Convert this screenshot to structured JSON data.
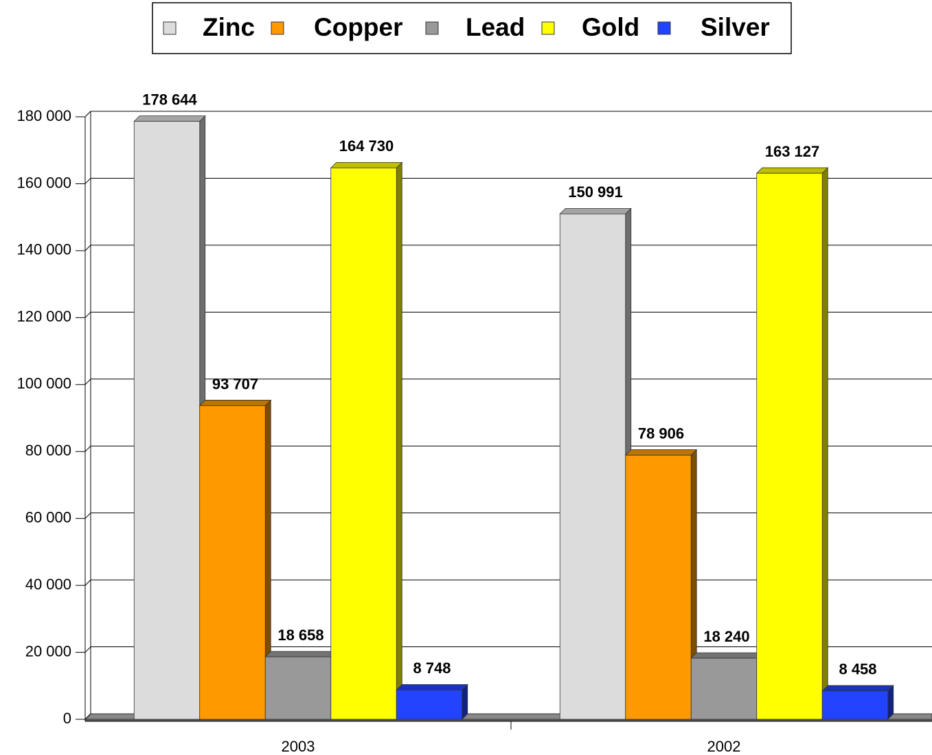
{
  "chart_data": {
    "type": "bar",
    "categories": [
      "2003",
      "2002"
    ],
    "series": [
      {
        "name": "Zinc",
        "color": "#dcdcdc",
        "values": [
          178644,
          150991
        ],
        "value_labels": [
          "178 644",
          "150 991"
        ]
      },
      {
        "name": "Copper",
        "color": "#ff9900",
        "values": [
          93707,
          78906
        ],
        "value_labels": [
          "93 707",
          "78 906"
        ]
      },
      {
        "name": "Lead",
        "color": "#999999",
        "values": [
          18658,
          18240
        ],
        "value_labels": [
          "18 658",
          "18 240"
        ]
      },
      {
        "name": "Gold",
        "color": "#ffff00",
        "values": [
          164730,
          163127
        ],
        "value_labels": [
          "164 730",
          "163 127"
        ]
      },
      {
        "name": "Silver",
        "color": "#2244ff",
        "values": [
          8748,
          8458
        ],
        "value_labels": [
          "8 748",
          "8 458"
        ]
      }
    ],
    "ylim": [
      0,
      180000
    ],
    "yticks": [
      0,
      {
        "value": 20000,
        "label": "20 000"
      },
      {
        "value": 40000,
        "label": "40 000"
      },
      {
        "value": 60000,
        "label": "60 000"
      },
      {
        "value": 80000,
        "label": "80 000"
      },
      {
        "value": 100000,
        "label": "100 000"
      },
      {
        "value": 120000,
        "label": "120 000"
      },
      {
        "value": 140000,
        "label": "140 000"
      },
      {
        "value": 160000,
        "label": "160 000"
      },
      {
        "value": 180000,
        "label": "180 000"
      }
    ],
    "grid": true,
    "legend": "top"
  }
}
